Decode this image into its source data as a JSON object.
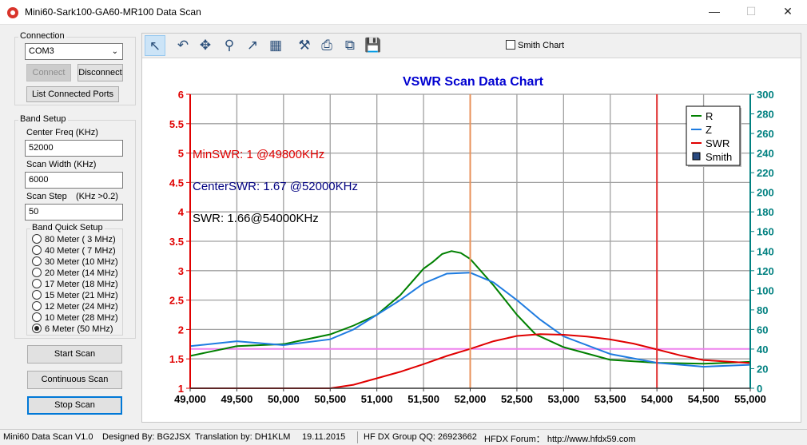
{
  "window": {
    "title": "Mini60-Sark100-GA60-MR100 Data Scan",
    "minimize": "—",
    "maximize": "☐",
    "close": "✕"
  },
  "connection": {
    "title": "Connection",
    "port": "COM3",
    "connect_label": "Connect",
    "disconnect_label": "Disconnect",
    "list_ports_label": "List Connected Ports"
  },
  "band_setup": {
    "title": "Band Setup",
    "center_freq_label": "Center Freq  (KHz)",
    "center_freq_value": "52000",
    "scan_width_label": "Scan Width   (KHz)",
    "scan_width_value": "6000",
    "scan_step_label": "Scan Step",
    "scan_step_hint": "(KHz >0.2)",
    "scan_step_value": "50",
    "quick_setup_title": "Band Quick Setup",
    "bands": [
      {
        "label": "80 Meter (  3 MHz)",
        "checked": false
      },
      {
        "label": "40 Meter (  7 MHz)",
        "checked": false
      },
      {
        "label": "30 Meter (10 MHz)",
        "checked": false
      },
      {
        "label": "20 Meter (14 MHz)",
        "checked": false
      },
      {
        "label": "17 Meter (18 MHz)",
        "checked": false
      },
      {
        "label": "15 Meter (21 MHz)",
        "checked": false
      },
      {
        "label": "12 Meter (24 MHz)",
        "checked": false
      },
      {
        "label": "10 Meter (28 MHz)",
        "checked": false
      },
      {
        "label": "6 Meter  (50 MHz)",
        "checked": true
      }
    ]
  },
  "actions": {
    "start_scan": "Start Scan",
    "continuous_scan": "Continuous Scan",
    "stop_scan": "Stop Scan"
  },
  "toolbar": {
    "tools": [
      "pointer-icon",
      "undo-icon",
      "pan-icon",
      "zoom-icon",
      "export-icon",
      "data-table-icon",
      "tools-icon",
      "print-icon",
      "copy-icon",
      "save-icon"
    ],
    "smith_chart_label": "Smith Chart",
    "smith_chart_checked": false
  },
  "chart_data": {
    "type": "line",
    "title": "VSWR Scan Data Chart",
    "x_range": [
      49000,
      55000
    ],
    "x_ticks": [
      49000,
      49500,
      50000,
      50500,
      51000,
      51500,
      52000,
      52500,
      53000,
      53500,
      54000,
      54500,
      55000
    ],
    "x_tick_labels": [
      "49,000",
      "49,500",
      "50,000",
      "50,500",
      "51,000",
      "51,500",
      "52,000",
      "52,500",
      "53,000",
      "53,500",
      "54,000",
      "54,500",
      "55,000"
    ],
    "y_left_range": [
      1,
      6
    ],
    "y_left_ticks": [
      "1",
      "1.5",
      "2",
      "2.5",
      "3",
      "3.5",
      "4",
      "4.5",
      "5",
      "5.5",
      "6"
    ],
    "y_right_range": [
      0,
      300
    ],
    "y_right_ticks": [
      "0",
      "20",
      "40",
      "60",
      "80",
      "100",
      "120",
      "140",
      "160",
      "180",
      "200",
      "220",
      "240",
      "260",
      "280",
      "300"
    ],
    "grid": true,
    "legend_position": "top-right",
    "legend": [
      {
        "name": "R",
        "color": "#008000",
        "marker": "line"
      },
      {
        "name": "Z",
        "color": "#1e7be0",
        "marker": "line"
      },
      {
        "name": "SWR",
        "color": "#e00000",
        "marker": "line"
      },
      {
        "name": "Smith",
        "color": "#2a4a80",
        "marker": "box"
      }
    ],
    "annotations": [
      {
        "text": "MinSWR: 1 @49800KHz",
        "color": "#e00000"
      },
      {
        "text": "CenterSWR: 1.67 @52000KHz",
        "color": "#000080"
      },
      {
        "text": "SWR: 1.66@54000KHz",
        "color": "#000000"
      }
    ],
    "markers": [
      {
        "x": 52000,
        "color": "#e8925a",
        "kind": "center"
      },
      {
        "x": 54000,
        "color": "#e03030",
        "kind": "cursor"
      }
    ],
    "reference_line": {
      "y": 1.67,
      "color": "#ee82ee"
    },
    "series": [
      {
        "name": "R",
        "axis": "right",
        "color": "#008000",
        "x": [
          49000,
          49500,
          50000,
          50500,
          50750,
          51000,
          51250,
          51500,
          51600,
          51700,
          51800,
          51900,
          52000,
          52250,
          52500,
          52700,
          53000,
          53500,
          54000,
          54500,
          55000
        ],
        "y": [
          33,
          43,
          45,
          55,
          64,
          75,
          95,
          122,
          129,
          137,
          140,
          138,
          132,
          105,
          75,
          55,
          42,
          29,
          26,
          25,
          27
        ]
      },
      {
        "name": "Z",
        "axis": "right",
        "color": "#1e7be0",
        "x": [
          49000,
          49500,
          50000,
          50500,
          50750,
          51000,
          51250,
          51500,
          51750,
          52000,
          52250,
          52500,
          52750,
          53000,
          53500,
          54000,
          54500,
          55000
        ],
        "y": [
          43,
          48,
          44,
          50,
          60,
          75,
          90,
          107,
          117,
          118,
          108,
          90,
          70,
          53,
          35,
          26,
          22,
          24
        ]
      },
      {
        "name": "SWR",
        "axis": "left",
        "color": "#e00000",
        "x": [
          49000,
          49500,
          49800,
          50000,
          50500,
          50750,
          51000,
          51250,
          51500,
          51750,
          52000,
          52250,
          52500,
          52750,
          53000,
          53250,
          53500,
          53750,
          54000,
          54250,
          54500,
          55000
        ],
        "y": [
          1,
          1,
          1,
          1,
          1,
          1.06,
          1.17,
          1.28,
          1.41,
          1.55,
          1.67,
          1.8,
          1.89,
          1.92,
          1.91,
          1.88,
          1.83,
          1.76,
          1.66,
          1.56,
          1.48,
          1.43
        ]
      }
    ]
  },
  "status": {
    "version": "Mini60 Data Scan V1.0",
    "designer": "Designed By: BG2JSX",
    "translator": "Translation by: DH1KLM",
    "date": "19.11.2015",
    "group": "HF DX Group QQ: 26923662",
    "forum": "HFDX Forum：  http://www.hfdx59.com"
  }
}
